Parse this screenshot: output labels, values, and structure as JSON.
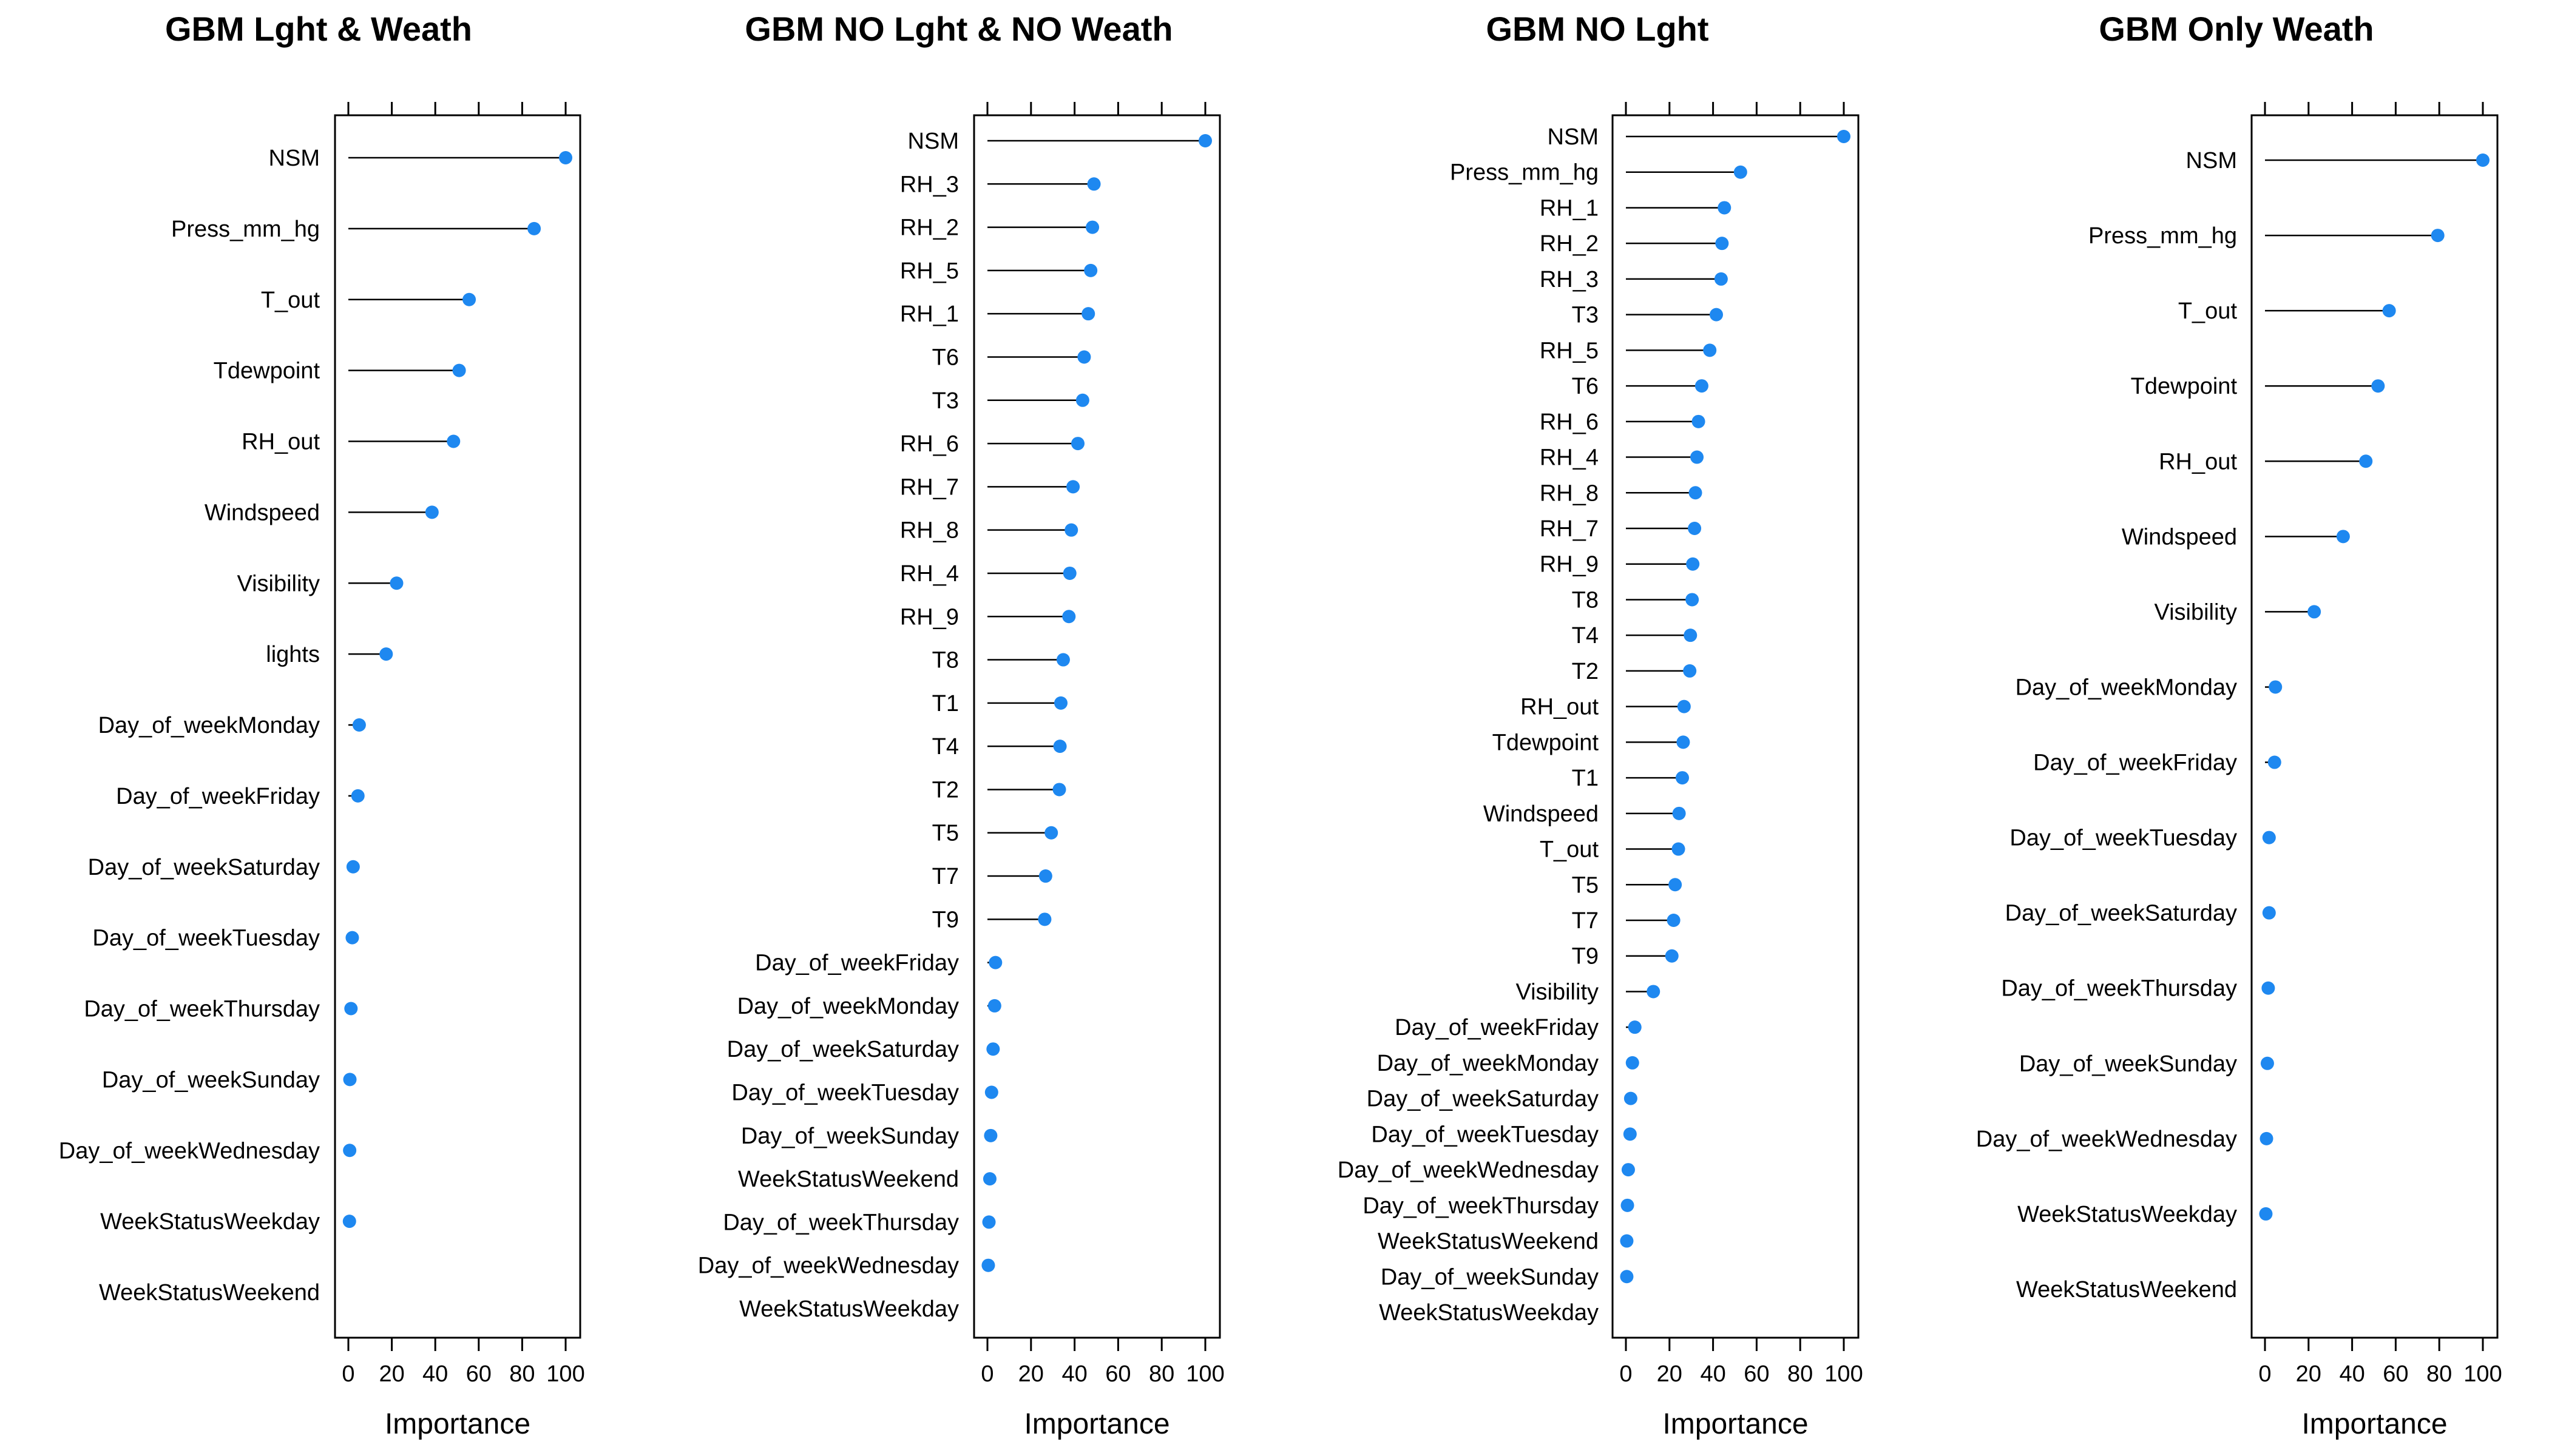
{
  "chart_data": [
    {
      "type": "dot",
      "title": "GBM Lght & Weath",
      "xlabel": "Importance",
      "xlim": [
        0,
        100
      ],
      "xticks": [
        "0",
        "20",
        "40",
        "60",
        "80",
        "100"
      ],
      "point_color": "#1e88f0",
      "categories": [
        "NSM",
        "Press_mm_hg",
        "T_out",
        "Tdewpoint",
        "RH_out",
        "Windspeed",
        "Visibility",
        "lights",
        "Day_of_weekMonday",
        "Day_of_weekFriday",
        "Day_of_weekSaturday",
        "Day_of_weekTuesday",
        "Day_of_weekThursday",
        "Day_of_weekSunday",
        "Day_of_weekWednesday",
        "WeekStatusWeekday",
        "WeekStatusWeekend"
      ],
      "values": [
        100,
        85.5,
        55.6,
        51,
        48.4,
        38.5,
        22.2,
        17.4,
        5,
        4.4,
        2.2,
        1.8,
        1.2,
        0.7,
        0.6,
        0.5,
        null
      ]
    },
    {
      "type": "dot",
      "title": "GBM NO Lght & NO Weath",
      "xlabel": "Importance",
      "xlim": [
        0,
        100
      ],
      "xticks": [
        "0",
        "20",
        "40",
        "60",
        "80",
        "100"
      ],
      "point_color": "#1e88f0",
      "categories": [
        "NSM",
        "RH_3",
        "RH_2",
        "RH_5",
        "RH_1",
        "T6",
        "T3",
        "RH_6",
        "RH_7",
        "RH_8",
        "RH_4",
        "RH_9",
        "T8",
        "T1",
        "T4",
        "T2",
        "T5",
        "T7",
        "T9",
        "Day_of_weekFriday",
        "Day_of_weekMonday",
        "Day_of_weekSaturday",
        "Day_of_weekTuesday",
        "Day_of_weekSunday",
        "WeekStatusWeekend",
        "Day_of_weekThursday",
        "Day_of_weekWednesday",
        "WeekStatusWeekday"
      ],
      "values": [
        100,
        48.9,
        48.2,
        47.4,
        46.3,
        44.4,
        43.7,
        41.5,
        39.3,
        38.5,
        37.8,
        37.4,
        34.8,
        33.7,
        33.3,
        33,
        29.3,
        26.7,
        26.3,
        3.7,
        3.3,
        2.6,
        1.9,
        1.5,
        1.1,
        0.7,
        0.4,
        null
      ]
    },
    {
      "type": "dot",
      "title": "GBM NO Lght",
      "xlabel": "Importance",
      "xlim": [
        0,
        100
      ],
      "xticks": [
        "0",
        "20",
        "40",
        "60",
        "80",
        "100"
      ],
      "point_color": "#1e88f0",
      "categories": [
        "NSM",
        "Press_mm_hg",
        "RH_1",
        "RH_2",
        "RH_3",
        "T3",
        "RH_5",
        "T6",
        "RH_6",
        "RH_4",
        "RH_8",
        "RH_7",
        "RH_9",
        "T8",
        "T4",
        "T2",
        "RH_out",
        "Tdewpoint",
        "T1",
        "Windspeed",
        "T_out",
        "T5",
        "T7",
        "T9",
        "Visibility",
        "Day_of_weekFriday",
        "Day_of_weekMonday",
        "Day_of_weekSaturday",
        "Day_of_weekTuesday",
        "Day_of_weekWednesday",
        "Day_of_weekThursday",
        "WeekStatusWeekend",
        "Day_of_weekSunday",
        "WeekStatusWeekday"
      ],
      "values": [
        100,
        52.6,
        45.2,
        44.1,
        43.7,
        41.5,
        38.5,
        34.8,
        33.3,
        32.6,
        31.9,
        31.5,
        30.7,
        30.4,
        29.6,
        29.3,
        26.7,
        26.3,
        25.9,
        24.4,
        24.1,
        22.6,
        21.9,
        21.1,
        12.6,
        4.1,
        3,
        2.2,
        1.9,
        1.1,
        0.7,
        0.4,
        0.4,
        null
      ]
    },
    {
      "type": "dot",
      "title": "GBM Only Weath",
      "xlabel": "Importance",
      "xlim": [
        0,
        100
      ],
      "xticks": [
        "0",
        "20",
        "40",
        "60",
        "80",
        "100"
      ],
      "point_color": "#1e88f0",
      "categories": [
        "NSM",
        "Press_mm_hg",
        "T_out",
        "Tdewpoint",
        "RH_out",
        "Windspeed",
        "Visibility",
        "Day_of_weekMonday",
        "Day_of_weekFriday",
        "Day_of_weekTuesday",
        "Day_of_weekSaturday",
        "Day_of_weekThursday",
        "Day_of_weekSunday",
        "Day_of_weekWednesday",
        "WeekStatusWeekday",
        "WeekStatusWeekend"
      ],
      "values": [
        100,
        79.3,
        57,
        51.9,
        46.3,
        35.9,
        22.6,
        4.8,
        4.4,
        1.9,
        1.9,
        1.5,
        1.1,
        0.7,
        0.4,
        null
      ]
    }
  ]
}
